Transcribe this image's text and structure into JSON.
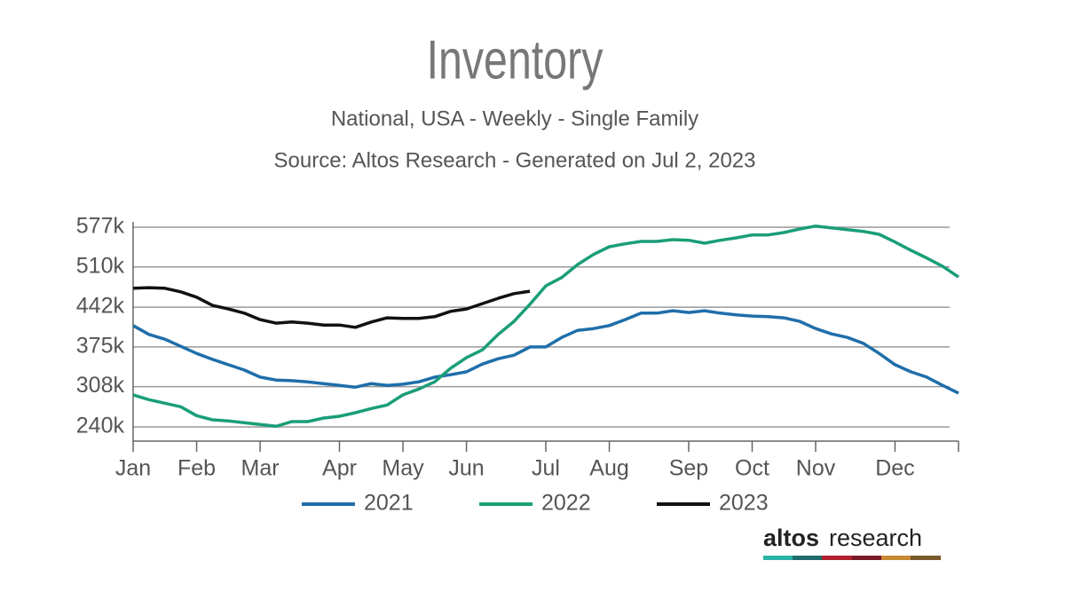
{
  "chart_data": {
    "type": "line",
    "title": "Inventory",
    "subtitle": "National, USA - Weekly - Single Family",
    "source": "Source: Altos Research - Generated on Jul 2, 2023",
    "categories": [
      "Jan",
      null,
      null,
      null,
      "Feb",
      null,
      null,
      null,
      "Mar",
      null,
      null,
      null,
      null,
      "Apr",
      null,
      null,
      null,
      "May",
      null,
      null,
      null,
      "Jun",
      null,
      null,
      null,
      null,
      "Jul",
      null,
      null,
      null,
      "Aug",
      null,
      null,
      null,
      null,
      "Sep",
      null,
      null,
      null,
      "Oct",
      null,
      null,
      null,
      "Nov",
      null,
      null,
      null,
      null,
      "Dec",
      null,
      null,
      null,
      null
    ],
    "series": [
      {
        "name": "2021",
        "color": "#1f6eaa",
        "values": [
          411000,
          396000,
          388000,
          376000,
          364000,
          354000,
          345000,
          336000,
          324000,
          319000,
          318000,
          316000,
          313000,
          310000,
          307000,
          313000,
          310000,
          312000,
          316000,
          324000,
          328000,
          333000,
          346000,
          355000,
          361000,
          375000,
          375000,
          391000,
          403000,
          406000,
          411000,
          421000,
          432000,
          432000,
          436000,
          433000,
          436000,
          432000,
          429000,
          427000,
          426000,
          424000,
          418000,
          406000,
          397000,
          391000,
          381000,
          364000,
          345000,
          333000,
          324000,
          310000,
          297000
        ]
      },
      {
        "name": "2022",
        "color": "#1a9e78",
        "values": [
          294000,
          286000,
          280000,
          274000,
          259000,
          252000,
          250000,
          247000,
          244000,
          241000,
          249000,
          249000,
          255000,
          258000,
          264000,
          271000,
          277000,
          294000,
          304000,
          316000,
          339000,
          357000,
          370000,
          396000,
          418000,
          447000,
          478000,
          492000,
          514000,
          531000,
          544000,
          549000,
          553000,
          553000,
          556000,
          555000,
          550000,
          555000,
          559000,
          564000,
          564000,
          568000,
          574000,
          579000,
          576000,
          573000,
          570000,
          565000,
          552000,
          538000,
          525000,
          511000,
          493000
        ]
      },
      {
        "name": "2023",
        "color": "#111111",
        "values": [
          474000,
          475000,
          474000,
          468000,
          459000,
          445000,
          439000,
          432000,
          421000,
          415000,
          417000,
          415000,
          412000,
          412000,
          408000,
          417000,
          424000,
          423000,
          423000,
          426000,
          435000,
          439000,
          448000,
          457000,
          465000,
          469000,
          null,
          null,
          null,
          null,
          null,
          null,
          null,
          null,
          null,
          null,
          null,
          null,
          null,
          null,
          null,
          null,
          null,
          null,
          null,
          null,
          null,
          null,
          null,
          null,
          null,
          null,
          null
        ]
      }
    ],
    "ylim": [
      216000,
      577000
    ],
    "yticks": [
      {
        "value": 240000,
        "label": "240k"
      },
      {
        "value": 308000,
        "label": "308k"
      },
      {
        "value": 375000,
        "label": "375k"
      },
      {
        "value": 442000,
        "label": "442k"
      },
      {
        "value": 510000,
        "label": "510k"
      },
      {
        "value": 577000,
        "label": "577k"
      }
    ],
    "grid": true,
    "legend": "bottom"
  },
  "logo": {
    "bold": "altos",
    "light": "research"
  }
}
